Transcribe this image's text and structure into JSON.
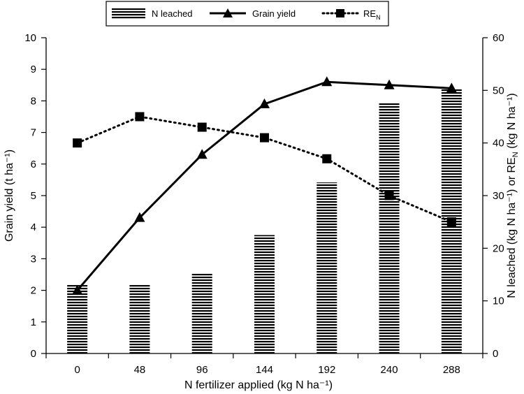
{
  "chart_data": {
    "type": "bar",
    "categories": [
      "0",
      "48",
      "96",
      "144",
      "192",
      "240",
      "288"
    ],
    "xlabel": "N fertilizer applied (kg N ha⁻¹)",
    "ylabel_left": "Grain yield (t ha⁻¹)",
    "ylabel_right": "N leached (kg N ha⁻¹) or RE",
    "ylabel_right_sub": "N",
    "ylabel_right_tail": " (kg N ha⁻¹)",
    "ylim_left": [
      0,
      10
    ],
    "ylim_right": [
      0,
      60
    ],
    "yticks_left": [
      "0",
      "1",
      "2",
      "3",
      "4",
      "5",
      "6",
      "7",
      "8",
      "9",
      "10"
    ],
    "yticks_right": [
      "0",
      "10",
      "20",
      "30",
      "40",
      "50",
      "60"
    ],
    "legend_position": "top-center",
    "grid": false,
    "series": [
      {
        "name": "N leached",
        "kind": "bar",
        "axis": "right",
        "style": "horizontal-hatch",
        "values": [
          13,
          13,
          15.3,
          22.5,
          32.5,
          47.7,
          50.2
        ]
      },
      {
        "name": "Grain yield",
        "kind": "line",
        "axis": "left",
        "style": "solid-triangle",
        "values": [
          2.0,
          4.3,
          6.3,
          7.9,
          8.6,
          8.5,
          8.4
        ]
      },
      {
        "name": "RE",
        "name_sub": "N",
        "kind": "line",
        "axis": "right",
        "style": "dotted-square",
        "values": [
          40,
          45,
          43,
          41,
          37,
          30,
          25
        ]
      }
    ]
  }
}
